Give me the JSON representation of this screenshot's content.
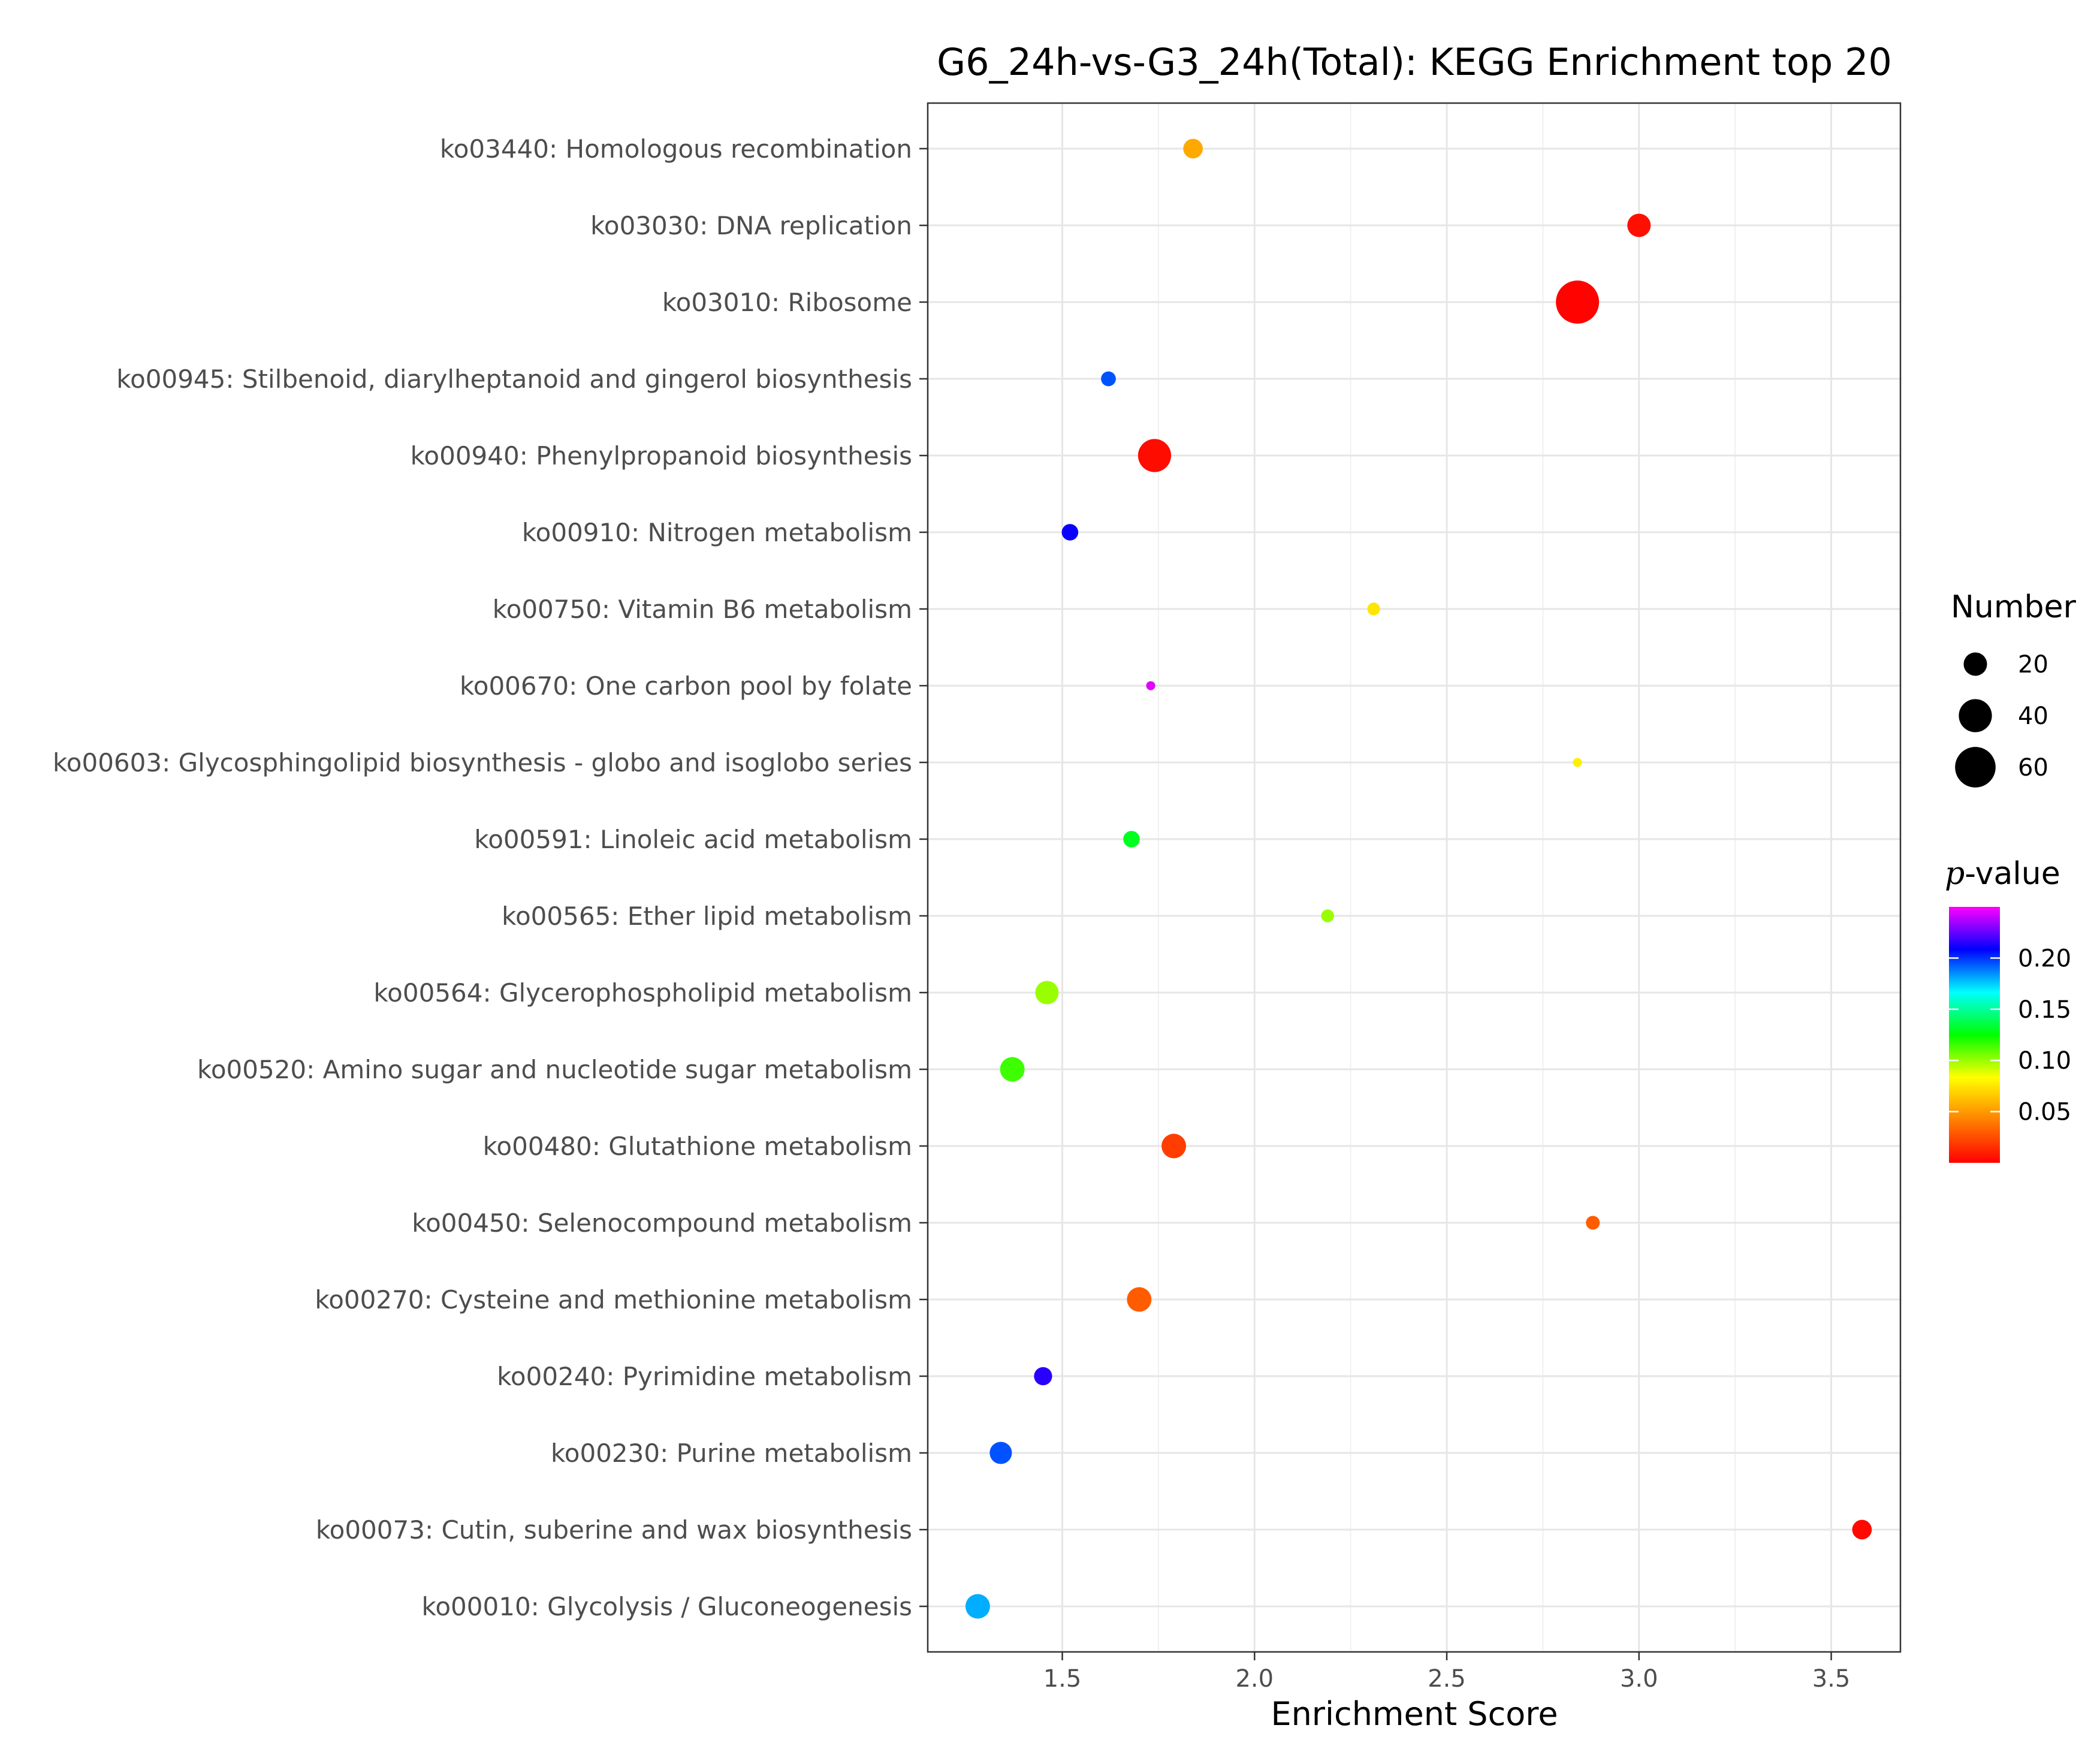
{
  "chart_data": {
    "type": "scatter",
    "title": "G6_24h-vs-G3_24h(Total): KEGG Enrichment top 20",
    "xlabel": "Enrichment Score",
    "ylabel": "",
    "xlim": [
      1.15,
      3.68
    ],
    "xticks": [
      1.5,
      2.0,
      2.5,
      3.0,
      3.5
    ],
    "xtick_labels": [
      "1.5",
      "2.0",
      "2.5",
      "3.0",
      "3.5"
    ],
    "grid": true,
    "categories": [
      "ko03440: Homologous recombination",
      "ko03030: DNA replication",
      "ko03010: Ribosome",
      "ko00945: Stilbenoid, diarylheptanoid and gingerol biosynthesis",
      "ko00940: Phenylpropanoid biosynthesis",
      "ko00910: Nitrogen metabolism",
      "ko00750: Vitamin B6 metabolism",
      "ko00670: One carbon pool by folate",
      "ko00603: Glycosphingolipid biosynthesis - globo and isoglobo series",
      "ko00591: Linoleic acid metabolism",
      "ko00565: Ether lipid metabolism",
      "ko00564: Glycerophospholipid metabolism",
      "ko00520: Amino sugar and nucleotide sugar metabolism",
      "ko00480: Glutathione metabolism",
      "ko00450: Selenocompound metabolism",
      "ko00270: Cysteine and methionine metabolism",
      "ko00240: Pyrimidine metabolism",
      "ko00230: Purine metabolism",
      "ko00073: Cutin, suberine and wax biosynthesis",
      "ko00010: Glycolysis / Gluconeogenesis"
    ],
    "points": [
      {
        "term": "ko03440: Homologous recombination",
        "enrichment": 1.84,
        "number": 14,
        "pvalue": 0.055
      },
      {
        "term": "ko03030: DNA replication",
        "enrichment": 3.0,
        "number": 20,
        "pvalue": 0.005
      },
      {
        "term": "ko03010: Ribosome",
        "enrichment": 2.84,
        "number": 68,
        "pvalue": 0.001
      },
      {
        "term": "ko00945: Stilbenoid, diarylheptanoid and gingerol biosynthesis",
        "enrichment": 1.62,
        "number": 8,
        "pvalue": 0.195
      },
      {
        "term": "ko00940: Phenylpropanoid biosynthesis",
        "enrichment": 1.74,
        "number": 40,
        "pvalue": 0.004
      },
      {
        "term": "ko00910: Nitrogen metabolism",
        "enrichment": 1.52,
        "number": 10,
        "pvalue": 0.21
      },
      {
        "term": "ko00750: Vitamin B6 metabolism",
        "enrichment": 2.31,
        "number": 6,
        "pvalue": 0.075
      },
      {
        "term": "ko00670: One carbon pool by folate",
        "enrichment": 1.73,
        "number": 3,
        "pvalue": 0.245
      },
      {
        "term": "ko00603: Glycosphingolipid biosynthesis - globo and isoglobo series",
        "enrichment": 2.84,
        "number": 3,
        "pvalue": 0.078
      },
      {
        "term": "ko00591: Linoleic acid metabolism",
        "enrichment": 1.68,
        "number": 10,
        "pvalue": 0.13
      },
      {
        "term": "ko00565: Ether lipid metabolism",
        "enrichment": 2.19,
        "number": 6,
        "pvalue": 0.1
      },
      {
        "term": "ko00564: Glycerophospholipid metabolism",
        "enrichment": 1.46,
        "number": 20,
        "pvalue": 0.1
      },
      {
        "term": "ko00520: Amino sugar and nucleotide sugar metabolism",
        "enrichment": 1.37,
        "number": 22,
        "pvalue": 0.115
      },
      {
        "term": "ko00480: Glutathione metabolism",
        "enrichment": 1.79,
        "number": 22,
        "pvalue": 0.02
      },
      {
        "term": "ko00450: Selenocompound metabolism",
        "enrichment": 2.88,
        "number": 7,
        "pvalue": 0.03
      },
      {
        "term": "ko00270: Cysteine and methionine metabolism",
        "enrichment": 1.7,
        "number": 22,
        "pvalue": 0.03
      },
      {
        "term": "ko00240: Pyrimidine metabolism",
        "enrichment": 1.45,
        "number": 12,
        "pvalue": 0.215
      },
      {
        "term": "ko00230: Purine metabolism",
        "enrichment": 1.34,
        "number": 18,
        "pvalue": 0.195
      },
      {
        "term": "ko00073: Cutin, suberine and wax biosynthesis",
        "enrichment": 3.58,
        "number": 14,
        "pvalue": 0.003
      },
      {
        "term": "ko00010: Glycolysis / Gluconeogenesis",
        "enrichment": 1.28,
        "number": 22,
        "pvalue": 0.18
      }
    ],
    "size_legend": {
      "title": "Number",
      "values": [
        20,
        40,
        60
      ],
      "labels": [
        "20",
        "40",
        "60"
      ]
    },
    "color_legend": {
      "title_italic": "p",
      "title_rest": "-value",
      "range": [
        0.0,
        0.25
      ],
      "ticks": [
        0.2,
        0.15,
        0.1,
        0.05
      ],
      "tick_labels": [
        "0.20",
        "0.15",
        "0.10",
        "0.05"
      ],
      "stops": [
        "#ff0000",
        "#ff8000",
        "#ffff00",
        "#00ff00",
        "#00ffff",
        "#0000ff",
        "#ff00ff"
      ]
    },
    "legend_position": "right"
  }
}
